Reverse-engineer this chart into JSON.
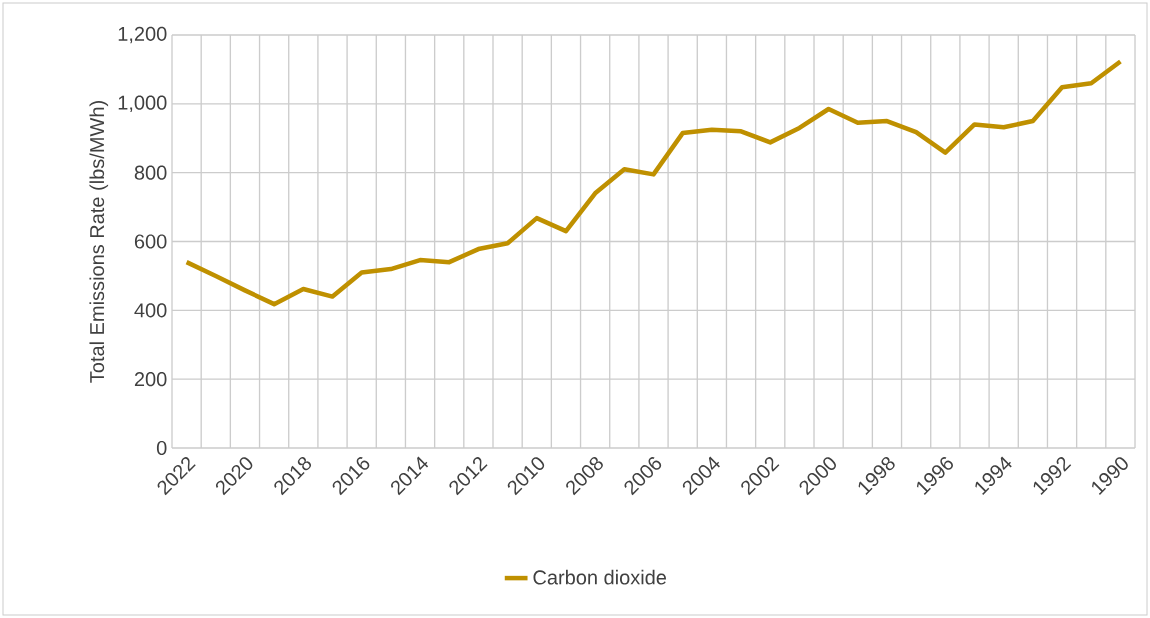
{
  "chart_data": {
    "type": "line",
    "ylabel": "Total Emissions Rate (lbs/MWh)",
    "categories": [
      "2022",
      null,
      "2020",
      null,
      "2018",
      null,
      "2016",
      null,
      "2014",
      null,
      "2012",
      null,
      "2010",
      null,
      "2008",
      null,
      "2006",
      null,
      "2004",
      null,
      "2002",
      null,
      "2000",
      null,
      "1998",
      null,
      "1996",
      null,
      "1994",
      null,
      "1992",
      null,
      "1990"
    ],
    "series": [
      {
        "name": "Carbon dioxide",
        "color": "#bf9000",
        "values": [
          540,
          500,
          458,
          418,
          462,
          440,
          510,
          520,
          546,
          540,
          578,
          595,
          668,
          630,
          740,
          810,
          795,
          915,
          925,
          920,
          888,
          930,
          985,
          945,
          950,
          918,
          858,
          940,
          932,
          950,
          1048,
          1060,
          1123
        ]
      }
    ],
    "ylim": [
      0,
      1200
    ],
    "yticks": [
      0,
      200,
      400,
      600,
      800,
      {
        "value": 1000,
        "label": "1,000"
      },
      {
        "value": 1200,
        "label": "1,200"
      }
    ],
    "grid": true,
    "legend": "bottom",
    "marker": "none",
    "line_style": "solid"
  }
}
